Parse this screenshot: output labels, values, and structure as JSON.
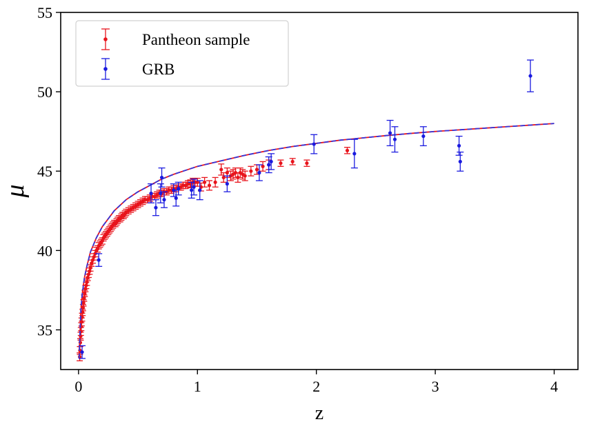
{
  "chart_data": {
    "type": "scatter",
    "title": "",
    "xlabel": "z",
    "ylabel": "μ",
    "xlim": [
      -0.15,
      4.2
    ],
    "ylim": [
      32.5,
      55
    ],
    "xticks": [
      0,
      1,
      2,
      3,
      4
    ],
    "xtick_labels": [
      "0",
      "1",
      "2",
      "3",
      "4"
    ],
    "yticks": [
      35,
      40,
      45,
      50,
      55
    ],
    "ytick_labels": [
      "35",
      "40",
      "45",
      "50",
      "55"
    ],
    "grid": false,
    "legend_position": "top-left",
    "colors": {
      "pantheon": "#e8141c",
      "grb": "#1a1adf",
      "fit_red": "#e8141c",
      "fit_blue": "#3535d8"
    },
    "series": [
      {
        "name": "Pantheon sample",
        "kind": "errorbar-points",
        "color": "#e8141c",
        "x": [
          0.01,
          0.012,
          0.015,
          0.018,
          0.02,
          0.023,
          0.026,
          0.03,
          0.034,
          0.038,
          0.042,
          0.047,
          0.052,
          0.058,
          0.064,
          0.07,
          0.077,
          0.085,
          0.093,
          0.1,
          0.11,
          0.12,
          0.13,
          0.14,
          0.15,
          0.16,
          0.17,
          0.18,
          0.19,
          0.2,
          0.21,
          0.22,
          0.23,
          0.24,
          0.25,
          0.26,
          0.27,
          0.28,
          0.29,
          0.3,
          0.31,
          0.32,
          0.33,
          0.34,
          0.35,
          0.36,
          0.37,
          0.38,
          0.39,
          0.4,
          0.42,
          0.44,
          0.46,
          0.48,
          0.5,
          0.52,
          0.54,
          0.56,
          0.58,
          0.6,
          0.62,
          0.64,
          0.66,
          0.68,
          0.7,
          0.72,
          0.74,
          0.76,
          0.78,
          0.8,
          0.82,
          0.84,
          0.86,
          0.88,
          0.9,
          0.92,
          0.94,
          0.96,
          0.98,
          1.0,
          1.03,
          1.06,
          1.1,
          1.15,
          1.2,
          1.22,
          1.25,
          1.28,
          1.3,
          1.32,
          1.34,
          1.36,
          1.38,
          1.4,
          1.45,
          1.5,
          1.55,
          1.6,
          1.7,
          1.8,
          1.92,
          2.26
        ],
        "y": [
          33.3,
          33.7,
          34.2,
          34.6,
          34.9,
          35.2,
          35.5,
          35.8,
          36.1,
          36.4,
          36.7,
          37.0,
          37.3,
          37.6,
          37.8,
          38.0,
          38.3,
          38.5,
          38.7,
          38.9,
          39.2,
          39.4,
          39.6,
          39.8,
          40.0,
          40.1,
          40.3,
          40.4,
          40.5,
          40.6,
          40.8,
          40.9,
          41.0,
          41.1,
          41.2,
          41.3,
          41.4,
          41.5,
          41.6,
          41.7,
          41.7,
          41.8,
          41.9,
          42.0,
          42.0,
          42.1,
          42.2,
          42.2,
          42.3,
          42.4,
          42.5,
          42.6,
          42.7,
          42.8,
          42.9,
          43.0,
          43.1,
          43.2,
          43.2,
          43.3,
          43.4,
          43.4,
          43.5,
          43.6,
          43.6,
          43.7,
          43.7,
          43.8,
          43.8,
          43.9,
          43.9,
          44.0,
          44.0,
          44.1,
          44.1,
          44.2,
          44.2,
          44.3,
          44.3,
          44.3,
          44.0,
          44.3,
          44.1,
          44.3,
          45.1,
          44.6,
          44.9,
          44.7,
          44.8,
          44.9,
          44.6,
          44.9,
          44.8,
          44.7,
          45.0,
          45.1,
          45.3,
          45.4,
          45.5,
          45.6,
          45.5,
          46.3
        ],
        "yerr": [
          0.25,
          0.25,
          0.25,
          0.25,
          0.25,
          0.25,
          0.25,
          0.25,
          0.2,
          0.2,
          0.2,
          0.2,
          0.2,
          0.2,
          0.2,
          0.2,
          0.2,
          0.2,
          0.2,
          0.2,
          0.2,
          0.2,
          0.2,
          0.2,
          0.2,
          0.2,
          0.2,
          0.2,
          0.2,
          0.2,
          0.2,
          0.2,
          0.2,
          0.2,
          0.2,
          0.2,
          0.2,
          0.2,
          0.2,
          0.2,
          0.2,
          0.2,
          0.2,
          0.2,
          0.2,
          0.2,
          0.2,
          0.2,
          0.2,
          0.2,
          0.2,
          0.2,
          0.2,
          0.2,
          0.2,
          0.2,
          0.2,
          0.2,
          0.2,
          0.2,
          0.2,
          0.2,
          0.2,
          0.2,
          0.2,
          0.2,
          0.2,
          0.2,
          0.2,
          0.2,
          0.2,
          0.2,
          0.2,
          0.2,
          0.2,
          0.2,
          0.25,
          0.25,
          0.25,
          0.25,
          0.25,
          0.3,
          0.3,
          0.3,
          0.35,
          0.3,
          0.3,
          0.3,
          0.3,
          0.3,
          0.3,
          0.3,
          0.3,
          0.3,
          0.3,
          0.3,
          0.3,
          0.3,
          0.2,
          0.2,
          0.2,
          0.2
        ]
      },
      {
        "name": "GRB",
        "kind": "errorbar-points",
        "color": "#1a1adf",
        "x": [
          0.03,
          0.17,
          0.61,
          0.65,
          0.69,
          0.7,
          0.72,
          0.8,
          0.82,
          0.84,
          0.95,
          0.97,
          1.02,
          1.25,
          1.52,
          1.6,
          1.62,
          1.98,
          2.32,
          2.62,
          2.66,
          2.9,
          3.2,
          3.21,
          3.8
        ],
        "y": [
          33.6,
          39.4,
          43.6,
          42.7,
          43.6,
          44.6,
          43.2,
          43.8,
          43.3,
          43.9,
          43.8,
          44.0,
          43.8,
          44.2,
          44.9,
          45.4,
          45.6,
          46.7,
          46.1,
          47.4,
          47.0,
          47.2,
          46.6,
          45.6,
          51.0
        ],
        "yerr": [
          0.4,
          0.4,
          0.6,
          0.5,
          0.6,
          0.6,
          0.5,
          0.4,
          0.5,
          0.4,
          0.5,
          0.5,
          0.6,
          0.5,
          0.5,
          0.5,
          0.5,
          0.6,
          0.9,
          0.8,
          0.8,
          0.6,
          0.6,
          0.6,
          1.0
        ]
      },
      {
        "kind": "fit-line",
        "style": "solid",
        "color": "#e8141c",
        "x": [
          0.005,
          0.01,
          0.02,
          0.03,
          0.05,
          0.07,
          0.1,
          0.15,
          0.2,
          0.3,
          0.4,
          0.5,
          0.6,
          0.7,
          0.8,
          0.9,
          1.0,
          1.2,
          1.4,
          1.6,
          1.8,
          2.0,
          2.2,
          2.4,
          2.6,
          2.8,
          3.0,
          3.2,
          3.4,
          3.6,
          3.8,
          4.0
        ],
        "y": [
          33.2,
          34.4,
          36.2,
          37.2,
          38.3,
          39.0,
          39.9,
          40.8,
          41.5,
          42.5,
          43.2,
          43.7,
          44.1,
          44.5,
          44.8,
          45.05,
          45.3,
          45.65,
          46.0,
          46.3,
          46.55,
          46.75,
          46.95,
          47.1,
          47.25,
          47.38,
          47.5,
          47.6,
          47.7,
          47.8,
          47.9,
          48.0
        ]
      },
      {
        "kind": "fit-line",
        "style": "dashed",
        "color": "#3535d8",
        "x": [
          0.005,
          0.01,
          0.02,
          0.03,
          0.05,
          0.07,
          0.1,
          0.15,
          0.2,
          0.3,
          0.4,
          0.5,
          0.6,
          0.7,
          0.8,
          0.9,
          1.0,
          1.2,
          1.4,
          1.6,
          1.8,
          2.0,
          2.2,
          2.4,
          2.6,
          2.8,
          3.0,
          3.2,
          3.4,
          3.6,
          3.8,
          4.0
        ],
        "y": [
          33.2,
          34.4,
          36.2,
          37.2,
          38.3,
          39.0,
          39.9,
          40.8,
          41.5,
          42.5,
          43.2,
          43.7,
          44.1,
          44.5,
          44.8,
          45.05,
          45.3,
          45.65,
          46.0,
          46.3,
          46.55,
          46.75,
          46.95,
          47.1,
          47.25,
          47.38,
          47.5,
          47.6,
          47.7,
          47.8,
          47.9,
          48.0
        ]
      }
    ]
  }
}
